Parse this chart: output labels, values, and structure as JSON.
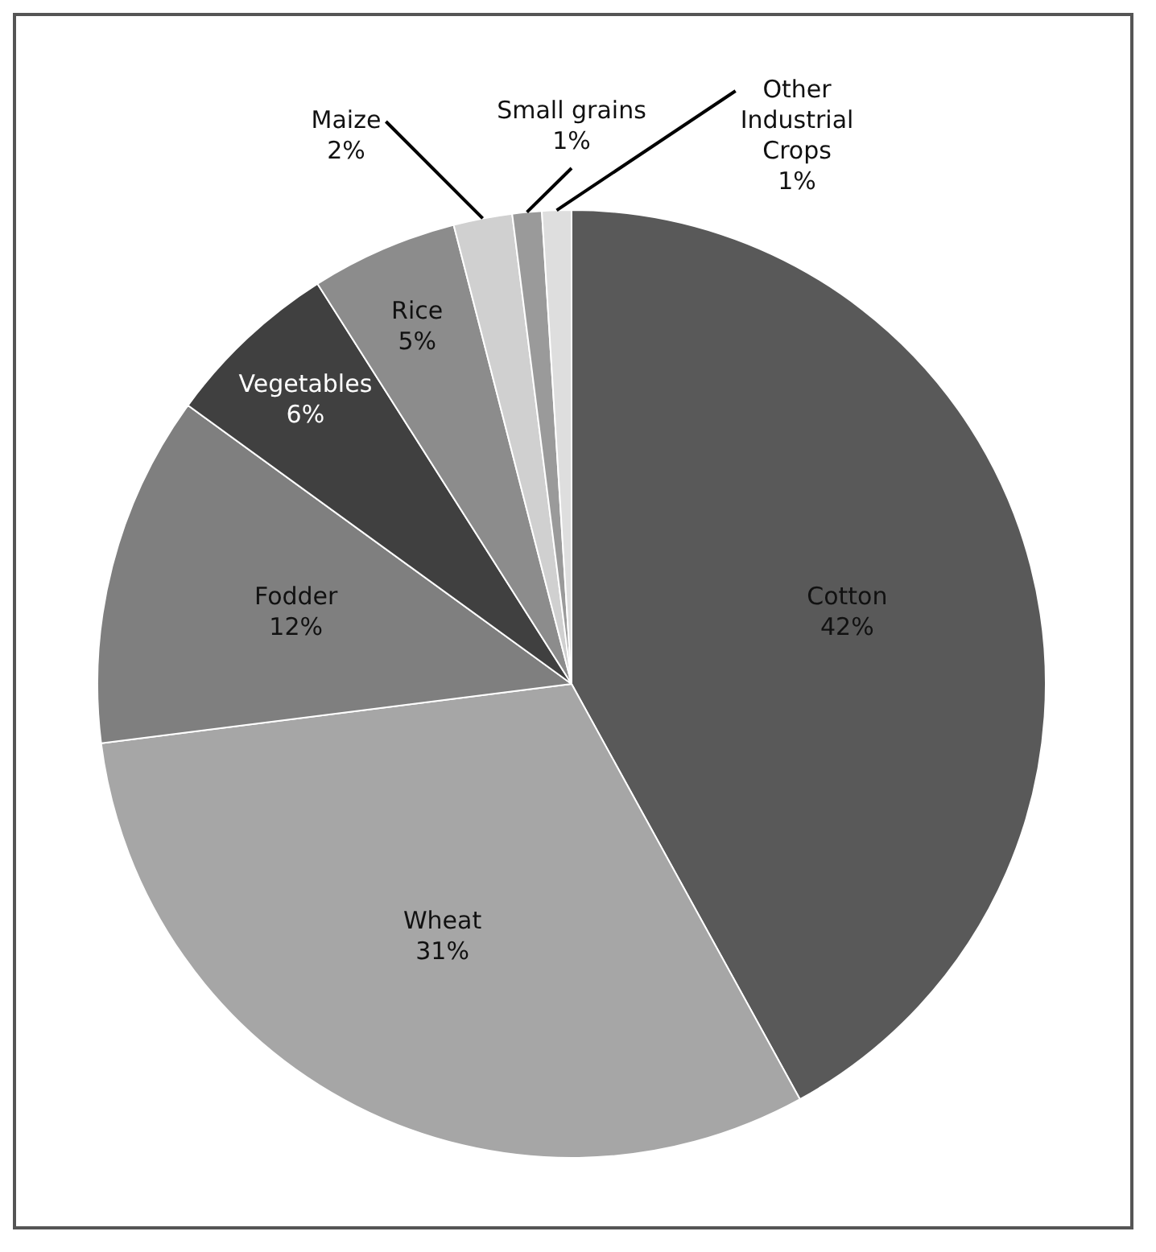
{
  "chart_data": {
    "type": "pie",
    "categories": [
      "Cotton",
      "Wheat",
      "Fodder",
      "Vegetables",
      "Rice",
      "Maize",
      "Small grains",
      "Other Industrial Crops"
    ],
    "values": [
      42,
      31,
      12,
      6,
      5,
      2,
      1,
      1
    ],
    "colors": [
      "#595959",
      "#a6a6a6",
      "#7f7f7f",
      "#404040",
      "#8c8c8c",
      "#d0d0d0",
      "#9a9a9a",
      "#dedede"
    ],
    "value_labels": [
      "42%",
      "31%",
      "12%",
      "6%",
      "5%",
      "2%",
      "1%",
      "1%"
    ],
    "legend": false
  }
}
